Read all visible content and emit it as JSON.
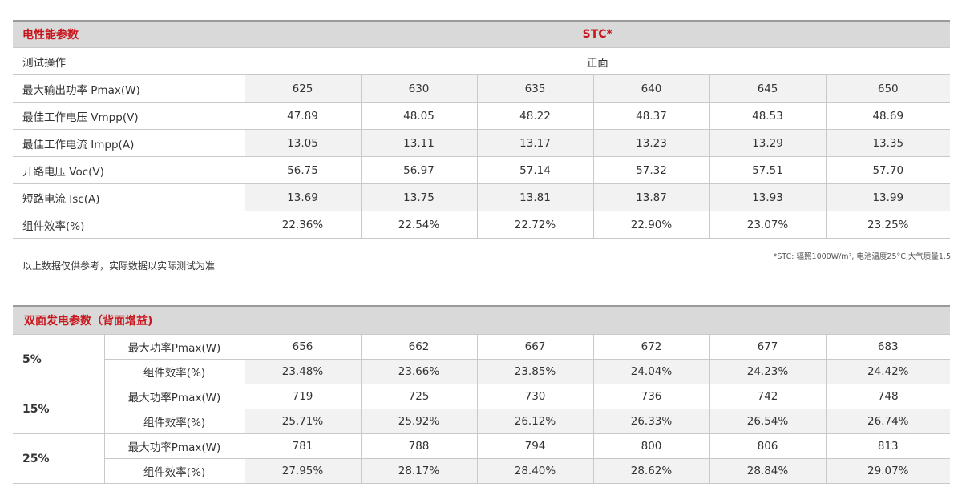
{
  "electrical": {
    "title": "电性能参数",
    "stc_label": "STC*",
    "test_condition_label": "测试操作",
    "test_condition_value": "正面",
    "rows": [
      {
        "label": "最大输出功率 Pmax(W)",
        "values": [
          "625",
          "630",
          "635",
          "640",
          "645",
          "650"
        ]
      },
      {
        "label": "最佳工作电压 Vmpp(V)",
        "values": [
          "47.89",
          "48.05",
          "48.22",
          "48.37",
          "48.53",
          "48.69"
        ]
      },
      {
        "label": "最佳工作电流 Impp(A)",
        "values": [
          "13.05",
          "13.11",
          "13.17",
          "13.23",
          "13.29",
          "13.35"
        ]
      },
      {
        "label": "开路电压 Voc(V)",
        "values": [
          "56.75",
          "56.97",
          "57.14",
          "57.32",
          "57.51",
          "57.70"
        ]
      },
      {
        "label": "短路电流 Isc(A)",
        "values": [
          "13.69",
          "13.75",
          "13.81",
          "13.87",
          "13.93",
          "13.99"
        ]
      },
      {
        "label": "组件效率(%)",
        "values": [
          "22.36%",
          "22.54%",
          "22.72%",
          "22.90%",
          "23.07%",
          "23.25%"
        ]
      }
    ]
  },
  "notes": {
    "left": "以上数据仅供参考，实际数据以实际测试为准",
    "right": "*STC: 辐照1000W/m², 电池温度25°C,大气质量1.5"
  },
  "bifacial": {
    "title": "双面发电参数（背面增益)",
    "groups": [
      {
        "gain": "5%",
        "rows": [
          {
            "label": "最大功率Pmax(W)",
            "values": [
              "656",
              "662",
              "667",
              "672",
              "677",
              "683"
            ]
          },
          {
            "label": "组件效率(%)",
            "values": [
              "23.48%",
              "23.66%",
              "23.85%",
              "24.04%",
              "24.23%",
              "24.42%"
            ]
          }
        ]
      },
      {
        "gain": "15%",
        "rows": [
          {
            "label": "最大功率Pmax(W)",
            "values": [
              "719",
              "725",
              "730",
              "736",
              "742",
              "748"
            ]
          },
          {
            "label": "组件效率(%)",
            "values": [
              "25.71%",
              "25.92%",
              "26.12%",
              "26.33%",
              "26.54%",
              "26.74%"
            ]
          }
        ]
      },
      {
        "gain": "25%",
        "rows": [
          {
            "label": "最大功率Pmax(W)",
            "values": [
              "781",
              "788",
              "794",
              "800",
              "806",
              "813"
            ]
          },
          {
            "label": "组件效率(%)",
            "values": [
              "27.95%",
              "28.17%",
              "28.40%",
              "28.62%",
              "28.84%",
              "29.07%"
            ]
          }
        ]
      }
    ]
  },
  "colors": {
    "accent": "#c8161d",
    "header_bg": "#d9d9d9",
    "shade_bg": "#f2f2f2",
    "border": "#c9c9c9"
  }
}
